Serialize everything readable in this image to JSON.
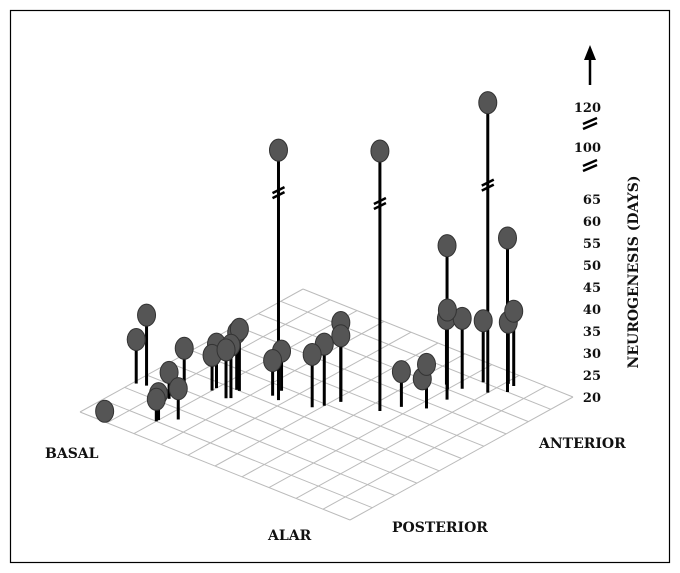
{
  "chart_data": {
    "type": "scatter",
    "subtype": "3d-lollipop",
    "title": "",
    "x_axis": {
      "label_low": "POSTERIOR",
      "label_high": "ANTERIOR",
      "range": [
        0,
        10
      ]
    },
    "y_axis": {
      "label_low": "ALAR",
      "label_high": "BASAL",
      "range": [
        0,
        10
      ]
    },
    "z_axis": {
      "label": "NEUROGENESIS (DAYS)",
      "ticks": [
        "20",
        "25",
        "30",
        "35",
        "40",
        "45",
        "50",
        "55",
        "60",
        "65",
        "100",
        "120"
      ],
      "broken_scale": true,
      "arrow": true
    },
    "grid": true,
    "colors": {
      "marker": "#555555",
      "stem": "#000000",
      "grid": "#bbbbbb",
      "frame": "#000000"
    },
    "points": [
      {
        "x": 0.5,
        "y": 9.5,
        "z": 20
      },
      {
        "x": 1.0,
        "y": 8.0,
        "z": 25
      },
      {
        "x": 1.1,
        "y": 8.0,
        "z": 26
      },
      {
        "x": 1.5,
        "y": 7.6,
        "z": 27
      },
      {
        "x": 2.5,
        "y": 9.6,
        "z": 36
      },
      {
        "x": 2.4,
        "y": 9.9,
        "z": 30
      },
      {
        "x": 3.1,
        "y": 8.7,
        "z": 29
      },
      {
        "x": 2.3,
        "y": 8.6,
        "z": 26
      },
      {
        "x": 3.5,
        "y": 8.0,
        "z": 28
      },
      {
        "x": 3.7,
        "y": 8.0,
        "z": 30
      },
      {
        "x": 3.4,
        "y": 7.4,
        "z": 31
      },
      {
        "x": 3.5,
        "y": 7.3,
        "z": 32
      },
      {
        "x": 4.0,
        "y": 7.4,
        "z": 34
      },
      {
        "x": 4.0,
        "y": 7.5,
        "z": 33
      },
      {
        "x": 4.3,
        "y": 6.2,
        "z": 100
      },
      {
        "x": 4.4,
        "y": 6.5,
        "z": 28
      },
      {
        "x": 4.8,
        "y": 6.5,
        "z": 29
      },
      {
        "x": 4.6,
        "y": 5.2,
        "z": 32
      },
      {
        "x": 4.9,
        "y": 5.0,
        "z": 34
      },
      {
        "x": 5.4,
        "y": 4.8,
        "z": 38
      },
      {
        "x": 5.4,
        "y": 4.8,
        "z": 35
      },
      {
        "x": 5.7,
        "y": 3.6,
        "z": 105
      },
      {
        "x": 6.3,
        "y": 3.3,
        "z": 28
      },
      {
        "x": 6.7,
        "y": 2.7,
        "z": 30
      },
      {
        "x": 7.6,
        "y": 3.6,
        "z": 22
      },
      {
        "x": 7.5,
        "y": 2.6,
        "z": 55
      },
      {
        "x": 8.0,
        "y": 3.0,
        "z": 38
      },
      {
        "x": 8.2,
        "y": 3.2,
        "z": 35
      },
      {
        "x": 8.3,
        "y": 2.7,
        "z": 36
      },
      {
        "x": 8.6,
        "y": 2.0,
        "z": 120
      },
      {
        "x": 9.0,
        "y": 2.5,
        "z": 34
      },
      {
        "x": 9.0,
        "y": 1.6,
        "z": 55
      },
      {
        "x": 9.4,
        "y": 1.9,
        "z": 34
      },
      {
        "x": 9.4,
        "y": 1.7,
        "z": 37
      }
    ]
  }
}
